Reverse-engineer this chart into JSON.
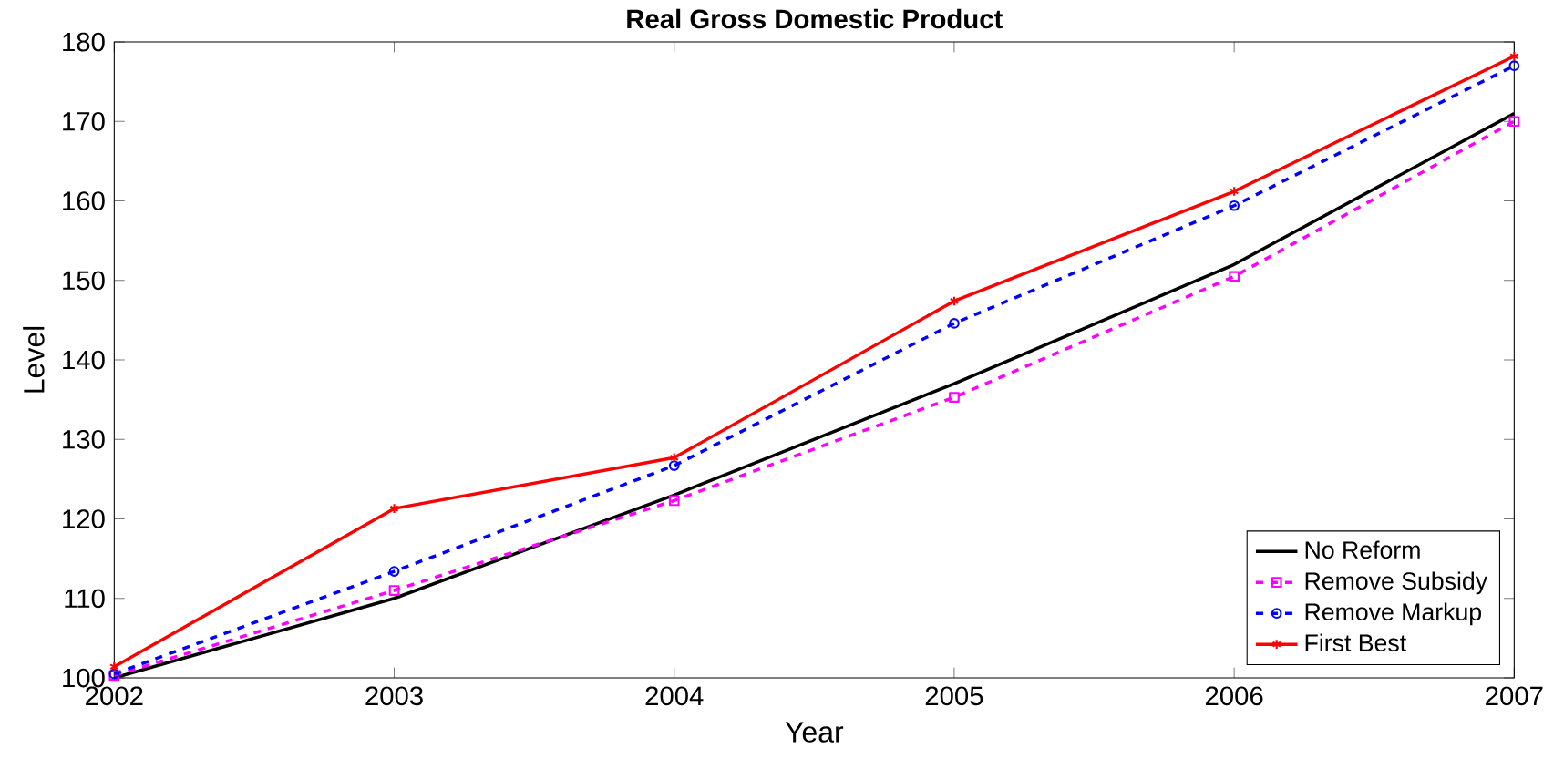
{
  "chart_data": {
    "type": "line",
    "title": "Real Gross Domestic Product",
    "xlabel": "Year",
    "ylabel": "Level",
    "x": [
      2002,
      2003,
      2004,
      2005,
      2006,
      2007
    ],
    "xlim": [
      2002,
      2007
    ],
    "xticks": [
      2002,
      2003,
      2004,
      2005,
      2006,
      2007
    ],
    "ylim": [
      100,
      180
    ],
    "yticks": [
      100,
      110,
      120,
      130,
      140,
      150,
      160,
      170,
      180
    ],
    "grid": false,
    "legend": "bottom right",
    "series": [
      {
        "name": "No Reform",
        "color": "#000000",
        "marker": "none",
        "line_style": "solid",
        "values": [
          100,
          110,
          123,
          137,
          152,
          171
        ]
      },
      {
        "name": "Remove Subsidy",
        "color": "#ff00ff",
        "marker": "square",
        "line_style": "dashed",
        "values": [
          100.3,
          111,
          122.3,
          135.3,
          150.5,
          170
        ]
      },
      {
        "name": "Remove Markup",
        "color": "#0000ff",
        "marker": "circle",
        "line_style": "dashed",
        "values": [
          100.5,
          113.4,
          126.7,
          144.6,
          159.4,
          177
        ]
      },
      {
        "name": "First Best",
        "color": "#ff0000",
        "marker": "cross",
        "line_style": "solid",
        "values": [
          101.4,
          121.3,
          127.7,
          147.4,
          161.2,
          178.2
        ]
      }
    ]
  }
}
